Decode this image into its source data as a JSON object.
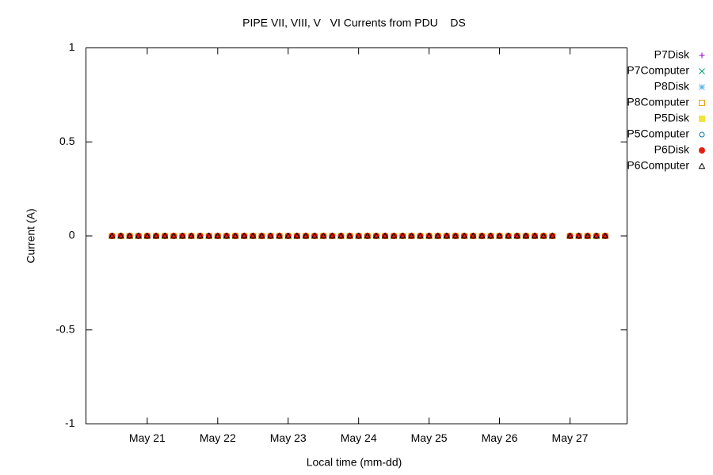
{
  "chart_data": {
    "type": "scatter",
    "title": "PIPE VII, VIII, V   VI Currents from PDU    DS",
    "x_label": "Local time (mm-dd)",
    "y_label": "Current (A)",
    "xlim": [
      20.13,
      27.81
    ],
    "xticks": [
      {
        "value": 21,
        "label": "May 21"
      },
      {
        "value": 22,
        "label": "May 22"
      },
      {
        "value": 23,
        "label": "May 23"
      },
      {
        "value": 24,
        "label": "May 24"
      },
      {
        "value": 25,
        "label": "May 25"
      },
      {
        "value": 26,
        "label": "May 26"
      },
      {
        "value": 27,
        "label": "May 27"
      }
    ],
    "ylim": [
      -1,
      1
    ],
    "yticks": [
      -1,
      -0.5,
      0,
      0.5,
      1
    ],
    "legend": "right",
    "x": [
      20.5,
      20.625,
      20.75,
      20.875,
      21,
      21.125,
      21.25,
      21.375,
      21.5,
      21.625,
      21.75,
      21.875,
      22,
      22.125,
      22.25,
      22.375,
      22.5,
      22.625,
      22.75,
      22.875,
      23,
      23.125,
      23.25,
      23.375,
      23.5,
      23.625,
      23.75,
      23.875,
      24,
      24.125,
      24.25,
      24.375,
      24.5,
      24.625,
      24.75,
      24.875,
      25,
      25.125,
      25.25,
      25.375,
      25.5,
      25.625,
      25.75,
      25.875,
      26,
      26.125,
      26.25,
      26.375,
      26.5,
      26.625,
      26.75,
      27,
      27.125,
      27.25,
      27.375,
      27.5
    ],
    "series": [
      {
        "name": "P7Disk",
        "color": "#9400d3",
        "marker": "plus",
        "values": [
          0,
          0,
          0,
          0,
          0,
          0,
          0,
          0,
          0,
          0,
          0,
          0,
          0,
          0,
          0,
          0,
          0,
          0,
          0,
          0,
          0,
          0,
          0,
          0,
          0,
          0,
          0,
          0,
          0,
          0,
          0,
          0,
          0,
          0,
          0,
          0,
          0,
          0,
          0,
          0,
          0,
          0,
          0,
          0,
          0,
          0,
          0,
          0,
          0,
          0,
          0,
          0,
          0,
          0,
          0,
          0
        ]
      },
      {
        "name": "P7Computer",
        "color": "#009e73",
        "marker": "cross",
        "values": [
          0,
          0,
          0,
          0,
          0,
          0,
          0,
          0,
          0,
          0,
          0,
          0,
          0,
          0,
          0,
          0,
          0,
          0,
          0,
          0,
          0,
          0,
          0,
          0,
          0,
          0,
          0,
          0,
          0,
          0,
          0,
          0,
          0,
          0,
          0,
          0,
          0,
          0,
          0,
          0,
          0,
          0,
          0,
          0,
          0,
          0,
          0,
          0,
          0,
          0,
          0,
          0,
          0,
          0,
          0,
          0
        ]
      },
      {
        "name": "P8Disk",
        "color": "#56b4e9",
        "marker": "star",
        "values": [
          0,
          0,
          0,
          0,
          0,
          0,
          0,
          0,
          0,
          0,
          0,
          0,
          0,
          0,
          0,
          0,
          0,
          0,
          0,
          0,
          0,
          0,
          0,
          0,
          0,
          0,
          0,
          0,
          0,
          0,
          0,
          0,
          0,
          0,
          0,
          0,
          0,
          0,
          0,
          0,
          0,
          0,
          0,
          0,
          0,
          0,
          0,
          0,
          0,
          0,
          0,
          0,
          0,
          0,
          0,
          0
        ]
      },
      {
        "name": "P8Computer",
        "color": "#e69f00",
        "marker": "open-square",
        "values": [
          0,
          0,
          0,
          0,
          0,
          0,
          0,
          0,
          0,
          0,
          0,
          0,
          0,
          0,
          0,
          0,
          0,
          0,
          0,
          0,
          0,
          0,
          0,
          0,
          0,
          0,
          0,
          0,
          0,
          0,
          0,
          0,
          0,
          0,
          0,
          0,
          0,
          0,
          0,
          0,
          0,
          0,
          0,
          0,
          0,
          0,
          0,
          0,
          0,
          0,
          0,
          0,
          0,
          0,
          0,
          0
        ]
      },
      {
        "name": "P5Disk",
        "color": "#f0e442",
        "marker": "filled-square",
        "values": [
          0,
          0,
          0,
          0,
          0,
          0,
          0,
          0,
          0,
          0,
          0,
          0,
          0,
          0,
          0,
          0,
          0,
          0,
          0,
          0,
          0,
          0,
          0,
          0,
          0,
          0,
          0,
          0,
          0,
          0,
          0,
          0,
          0,
          0,
          0,
          0,
          0,
          0,
          0,
          0,
          0,
          0,
          0,
          0,
          0,
          0,
          0,
          0,
          0,
          0,
          0,
          0,
          0,
          0,
          0,
          0
        ]
      },
      {
        "name": "P5Computer",
        "color": "#0072b2",
        "marker": "open-circle",
        "values": [
          0,
          0,
          0,
          0,
          0,
          0,
          0,
          0,
          0,
          0,
          0,
          0,
          0,
          0,
          0,
          0,
          0,
          0,
          0,
          0,
          0,
          0,
          0,
          0,
          0,
          0,
          0,
          0,
          0,
          0,
          0,
          0,
          0,
          0,
          0,
          0,
          0,
          0,
          0,
          0,
          0,
          0,
          0,
          0,
          0,
          0,
          0,
          0,
          0,
          0,
          0,
          0,
          0,
          0,
          0,
          0
        ]
      },
      {
        "name": "P6Disk",
        "color": "#e51e10",
        "marker": "filled-circle",
        "values": [
          0,
          0,
          0,
          0,
          0,
          0,
          0,
          0,
          0,
          0,
          0,
          0,
          0,
          0,
          0,
          0,
          0,
          0,
          0,
          0,
          0,
          0,
          0,
          0,
          0,
          0,
          0,
          0,
          0,
          0,
          0,
          0,
          0,
          0,
          0,
          0,
          0,
          0,
          0,
          0,
          0,
          0,
          0,
          0,
          0,
          0,
          0,
          0,
          0,
          0,
          0,
          0,
          0,
          0,
          0,
          0
        ]
      },
      {
        "name": "P6Computer",
        "color": "#000000",
        "marker": "open-triangle",
        "values": [
          0,
          0,
          0,
          0,
          0,
          0,
          0,
          0,
          0,
          0,
          0,
          0,
          0,
          0,
          0,
          0,
          0,
          0,
          0,
          0,
          0,
          0,
          0,
          0,
          0,
          0,
          0,
          0,
          0,
          0,
          0,
          0,
          0,
          0,
          0,
          0,
          0,
          0,
          0,
          0,
          0,
          0,
          0,
          0,
          0,
          0,
          0,
          0,
          0,
          0,
          0,
          0,
          0,
          0,
          0,
          0
        ]
      }
    ]
  }
}
